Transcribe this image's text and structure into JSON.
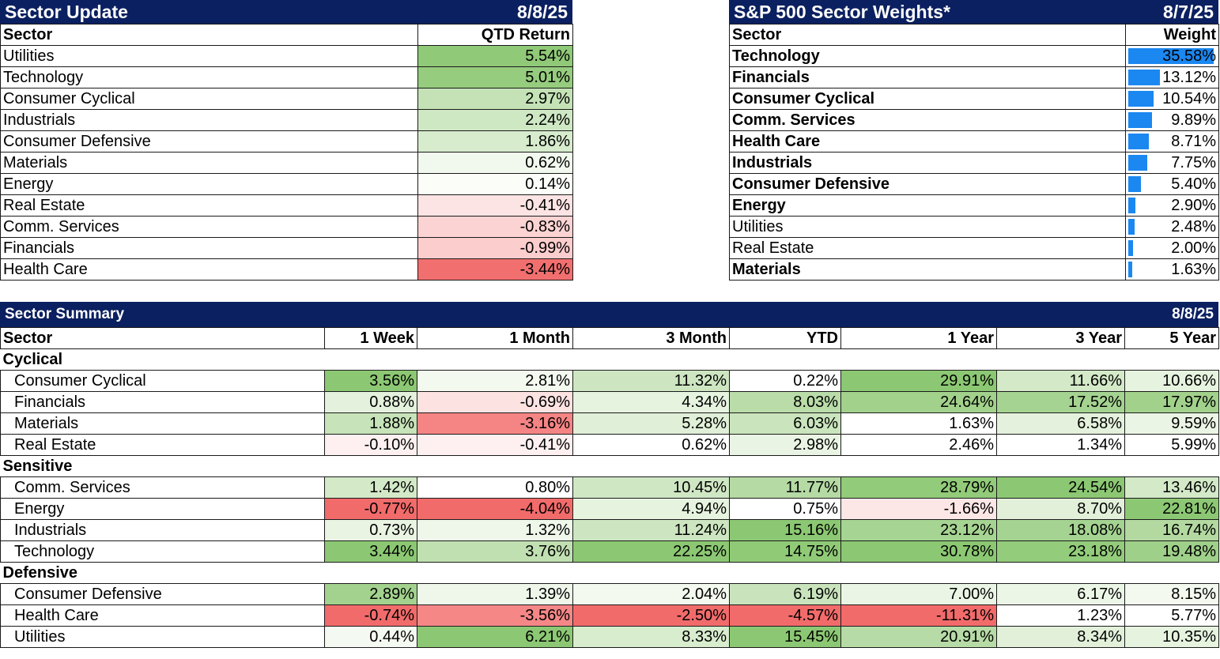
{
  "sector_update": {
    "title": "Sector Update",
    "date": "8/8/25",
    "col_sector": "Sector",
    "col_return": "QTD Return",
    "rows": [
      {
        "sector": "Utilities",
        "value": "5.54%",
        "color": "#90c978"
      },
      {
        "sector": "Technology",
        "value": "5.01%",
        "color": "#96cc7e"
      },
      {
        "sector": "Consumer Cyclical",
        "value": "2.97%",
        "color": "#c4e2b6"
      },
      {
        "sector": "Industrials",
        "value": "2.24%",
        "color": "#cfe8c4"
      },
      {
        "sector": "Consumer Defensive",
        "value": "1.86%",
        "color": "#d7ebcd"
      },
      {
        "sector": "Materials",
        "value": "0.62%",
        "color": "#f1f8ed"
      },
      {
        "sector": "Energy",
        "value": "0.14%",
        "color": "#fbfdf9"
      },
      {
        "sector": "Real Estate",
        "value": "-0.41%",
        "color": "#fde4e4"
      },
      {
        "sector": "Comm. Services",
        "value": "-0.83%",
        "color": "#fcd3d3"
      },
      {
        "sector": "Financials",
        "value": "-0.99%",
        "color": "#fccdcd"
      },
      {
        "sector": "Health Care",
        "value": "-3.44%",
        "color": "#f26f6f"
      }
    ]
  },
  "sector_weights": {
    "title": "S&P 500 Sector Weights*",
    "date": "8/7/25",
    "col_sector": "Sector",
    "col_weight": "Weight",
    "bar_color": "#1b87f0",
    "rows": [
      {
        "sector": "Technology",
        "value": "35.58%",
        "weight": 35.58,
        "bold": true
      },
      {
        "sector": "Financials",
        "value": "13.12%",
        "weight": 13.12,
        "bold": true
      },
      {
        "sector": "Consumer Cyclical",
        "value": "10.54%",
        "weight": 10.54,
        "bold": true
      },
      {
        "sector": "Comm. Services",
        "value": "9.89%",
        "weight": 9.89,
        "bold": true
      },
      {
        "sector": "Health Care",
        "value": "8.71%",
        "weight": 8.71,
        "bold": true
      },
      {
        "sector": "Industrials",
        "value": "7.75%",
        "weight": 7.75,
        "bold": true
      },
      {
        "sector": "Consumer Defensive",
        "value": "5.40%",
        "weight": 5.4,
        "bold": true
      },
      {
        "sector": "Energy",
        "value": "2.90%",
        "weight": 2.9,
        "bold": true
      },
      {
        "sector": "Utilities",
        "value": "2.48%",
        "weight": 2.48,
        "bold": false
      },
      {
        "sector": "Real Estate",
        "value": "2.00%",
        "weight": 2.0,
        "bold": false
      },
      {
        "sector": "Materials",
        "value": "1.63%",
        "weight": 1.63,
        "bold": true
      }
    ]
  },
  "sector_summary": {
    "title": "Sector Summary",
    "date": "8/8/25",
    "columns": [
      "Sector",
      "1 Week",
      "1 Month",
      "3 Month",
      "YTD",
      "1 Year",
      "3 Year",
      "5 Year"
    ],
    "groups": [
      {
        "name": "Cyclical",
        "rows": [
          {
            "sector": "Consumer Cyclical",
            "values": [
              "3.56%",
              "2.81%",
              "11.32%",
              "0.22%",
              "29.91%",
              "11.66%",
              "10.66%"
            ],
            "colors": [
              "#8cc873",
              "#f3f9ef",
              "#cde6c1",
              "#ffffff",
              "#8cc873",
              "#d3e9c8",
              "#e6f3df"
            ]
          },
          {
            "sector": "Financials",
            "values": [
              "0.88%",
              "-0.69%",
              "4.34%",
              "8.03%",
              "24.64%",
              "17.52%",
              "17.97%"
            ],
            "colors": [
              "#e4f1dc",
              "#fde2e2",
              "#e6f3df",
              "#b9dca9",
              "#a2d18c",
              "#a5d391",
              "#a2d18c"
            ]
          },
          {
            "sector": "Materials",
            "values": [
              "1.88%",
              "-3.16%",
              "5.28%",
              "6.03%",
              "1.63%",
              "6.58%",
              "9.59%"
            ],
            "colors": [
              "#c7e3b9",
              "#f58484",
              "#e0efd7",
              "#cae5bd",
              "#ffffff",
              "#e4f1dc",
              "#ebf5e5"
            ]
          },
          {
            "sector": "Real Estate",
            "values": [
              "-0.10%",
              "-0.41%",
              "0.62%",
              "2.98%",
              "2.46%",
              "1.34%",
              "5.99%"
            ],
            "colors": [
              "#fef0f0",
              "#fef0f0",
              "#ffffff",
              "#eaf4e4",
              "#ffffff",
              "#ffffff",
              "#ffffff"
            ]
          }
        ]
      },
      {
        "name": "Sensitive",
        "rows": [
          {
            "sector": "Comm. Services",
            "values": [
              "1.42%",
              "0.80%",
              "10.45%",
              "11.77%",
              "28.79%",
              "24.54%",
              "13.46%"
            ],
            "colors": [
              "#d3e9c8",
              "#ffffff",
              "#d0e7c4",
              "#b5daa4",
              "#92cb79",
              "#8cc873",
              "#d3e9c8"
            ]
          },
          {
            "sector": "Energy",
            "values": [
              "-0.77%",
              "-4.04%",
              "4.94%",
              "0.75%",
              "-1.66%",
              "8.70%",
              "22.81%"
            ],
            "colors": [
              "#f26b6b",
              "#f26b6b",
              "#e6f3df",
              "#ffffff",
              "#fde6e6",
              "#e2f0da",
              "#8cc873"
            ]
          },
          {
            "sector": "Industrials",
            "values": [
              "0.73%",
              "1.32%",
              "11.24%",
              "15.16%",
              "23.12%",
              "18.08%",
              "16.74%"
            ],
            "colors": [
              "#e9f4e3",
              "#eef7ea",
              "#cde6c1",
              "#8cc873",
              "#a6d492",
              "#a5d391",
              "#b3d9a1"
            ]
          },
          {
            "sector": "Technology",
            "values": [
              "3.44%",
              "3.76%",
              "22.25%",
              "14.75%",
              "30.78%",
              "23.18%",
              "19.48%"
            ],
            "colors": [
              "#8cc873",
              "#c1e0b2",
              "#8cc873",
              "#90ca77",
              "#8cc873",
              "#93cc7b",
              "#9fd08a"
            ]
          }
        ]
      },
      {
        "name": "Defensive",
        "rows": [
          {
            "sector": "Consumer Defensive",
            "values": [
              "2.89%",
              "1.39%",
              "2.04%",
              "6.19%",
              "7.00%",
              "6.17%",
              "8.15%"
            ],
            "colors": [
              "#a3d28e",
              "#eef7ea",
              "#f3f9ef",
              "#c9e4bc",
              "#ebf5e5",
              "#ecf6e7",
              "#f3f9ef"
            ]
          },
          {
            "sector": "Health Care",
            "values": [
              "-0.74%",
              "-3.56%",
              "-2.50%",
              "-4.57%",
              "-11.31%",
              "1.23%",
              "5.77%"
            ],
            "colors": [
              "#f26b6b",
              "#f58787",
              "#f26b6b",
              "#f26b6b",
              "#f26b6b",
              "#ffffff",
              "#ffffff"
            ]
          },
          {
            "sector": "Utilities",
            "values": [
              "0.44%",
              "6.21%",
              "8.33%",
              "15.45%",
              "20.91%",
              "8.34%",
              "10.35%"
            ],
            "colors": [
              "#f4faf1",
              "#8cc873",
              "#d8ecce",
              "#8cc873",
              "#b7dba6",
              "#e2f0da",
              "#e6f3df"
            ]
          }
        ]
      }
    ]
  }
}
